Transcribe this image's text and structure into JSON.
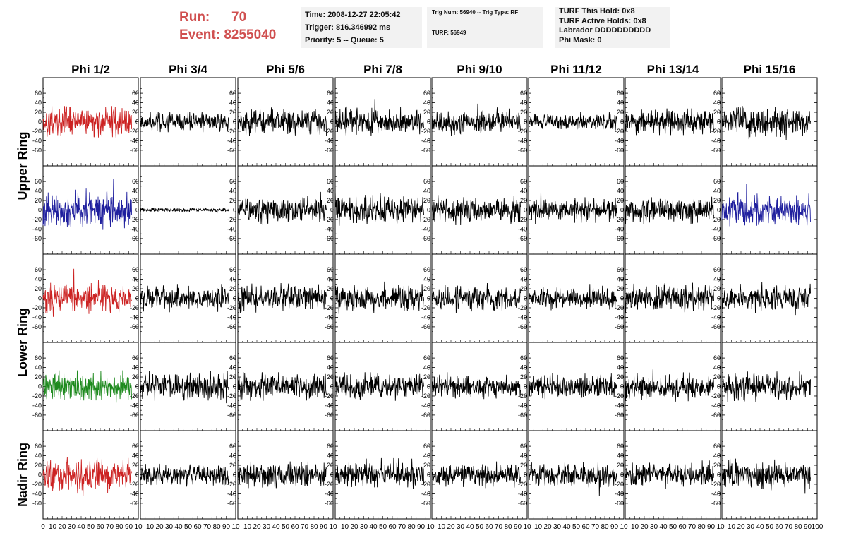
{
  "header": {
    "run_label": "Run:",
    "run_value": "70",
    "event_label": "Event:",
    "event_value": "8255040",
    "time_line": "Time: 2008-12-27 22:05:42",
    "trigger_line": "Trigger: 816.346992 ms",
    "priority_line": "Priority: 5 -- Queue: 5",
    "trig_num_line": "Trig Num: 56940 -- Trig Type: RF",
    "turf_line": "TURF: 56949",
    "turf_this_hold": "TURF This Hold: 0x8",
    "turf_active_holds": "TURF Active Holds: 0x8",
    "labrador": "Labrador DDDDDDDDDD",
    "phi_mask": "Phi Mask: 0"
  },
  "chart_data": {
    "type": "line",
    "columns": [
      "Phi 1/2",
      "Phi 3/4",
      "Phi 5/6",
      "Phi 7/8",
      "Phi 9/10",
      "Phi 11/12",
      "Phi 13/14",
      "Phi 15/16"
    ],
    "rows": [
      "Upper Ring",
      "Lower Ring",
      "Nadir Ring"
    ],
    "row_spans": [
      2,
      2,
      1
    ],
    "xlim": [
      0,
      100
    ],
    "ylim": [
      -75,
      75
    ],
    "y_ticks": [
      -60,
      -40,
      -20,
      0,
      20,
      40,
      60
    ],
    "x_ticks": [
      0,
      10,
      20,
      30,
      40,
      50,
      60,
      70,
      80,
      90,
      100
    ],
    "x_tick_labels_last": "100",
    "x_tick_labels_other": "10",
    "samples_per_trace": 260,
    "trace_end": 93,
    "colors": {
      "red": "#cc2222",
      "blue": "#1f1f9e",
      "green": "#1e8a1e",
      "black": "#000000"
    },
    "panels": [
      {
        "row": 0,
        "col": 0,
        "color": "red",
        "amplitude": 15,
        "peak": 33
      },
      {
        "row": 0,
        "col": 1,
        "color": "black",
        "amplitude": 9,
        "peak": 22
      },
      {
        "row": 0,
        "col": 2,
        "color": "black",
        "amplitude": 12,
        "peak": 30
      },
      {
        "row": 0,
        "col": 3,
        "color": "black",
        "amplitude": 12,
        "peak": 48
      },
      {
        "row": 0,
        "col": 4,
        "color": "black",
        "amplitude": 11,
        "peak": 38
      },
      {
        "row": 0,
        "col": 5,
        "color": "black",
        "amplitude": 8,
        "peak": 20
      },
      {
        "row": 0,
        "col": 6,
        "color": "black",
        "amplitude": 12,
        "peak": 28
      },
      {
        "row": 0,
        "col": 7,
        "color": "black",
        "amplitude": 14,
        "peak": 38
      },
      {
        "row": 1,
        "col": 0,
        "color": "blue",
        "amplitude": 17,
        "peak": 65
      },
      {
        "row": 1,
        "col": 1,
        "color": "black",
        "amplitude": 2,
        "peak": 7
      },
      {
        "row": 1,
        "col": 2,
        "color": "black",
        "amplitude": 13,
        "peak": 38
      },
      {
        "row": 1,
        "col": 3,
        "color": "black",
        "amplitude": 13,
        "peak": 40
      },
      {
        "row": 1,
        "col": 4,
        "color": "black",
        "amplitude": 12,
        "peak": 32
      },
      {
        "row": 1,
        "col": 5,
        "color": "black",
        "amplitude": 12,
        "peak": 42
      },
      {
        "row": 1,
        "col": 6,
        "color": "black",
        "amplitude": 12,
        "peak": 30
      },
      {
        "row": 1,
        "col": 7,
        "color": "blue",
        "amplitude": 16,
        "peak": 55
      },
      {
        "row": 2,
        "col": 0,
        "color": "red",
        "amplitude": 15,
        "peak": 62
      },
      {
        "row": 2,
        "col": 1,
        "color": "black",
        "amplitude": 13,
        "peak": 30
      },
      {
        "row": 2,
        "col": 2,
        "color": "black",
        "amplitude": 13,
        "peak": 32
      },
      {
        "row": 2,
        "col": 3,
        "color": "black",
        "amplitude": 13,
        "peak": 35
      },
      {
        "row": 2,
        "col": 4,
        "color": "black",
        "amplitude": 12,
        "peak": 32
      },
      {
        "row": 2,
        "col": 5,
        "color": "black",
        "amplitude": 11,
        "peak": 30
      },
      {
        "row": 2,
        "col": 6,
        "color": "black",
        "amplitude": 13,
        "peak": 32
      },
      {
        "row": 2,
        "col": 7,
        "color": "black",
        "amplitude": 13,
        "peak": 35
      },
      {
        "row": 3,
        "col": 0,
        "color": "green",
        "amplitude": 14,
        "peak": 34
      },
      {
        "row": 3,
        "col": 1,
        "color": "black",
        "amplitude": 13,
        "peak": 35
      },
      {
        "row": 3,
        "col": 2,
        "color": "black",
        "amplitude": 13,
        "peak": 30
      },
      {
        "row": 3,
        "col": 3,
        "color": "black",
        "amplitude": 12,
        "peak": 30
      },
      {
        "row": 3,
        "col": 4,
        "color": "black",
        "amplitude": 11,
        "peak": 30
      },
      {
        "row": 3,
        "col": 5,
        "color": "black",
        "amplitude": 11,
        "peak": 28
      },
      {
        "row": 3,
        "col": 6,
        "color": "black",
        "amplitude": 12,
        "peak": 36
      },
      {
        "row": 3,
        "col": 7,
        "color": "black",
        "amplitude": 13,
        "peak": 32
      },
      {
        "row": 4,
        "col": 0,
        "color": "red",
        "amplitude": 15,
        "peak": 45
      },
      {
        "row": 4,
        "col": 1,
        "color": "black",
        "amplitude": 10,
        "peak": 25
      },
      {
        "row": 4,
        "col": 2,
        "color": "black",
        "amplitude": 12,
        "peak": 28
      },
      {
        "row": 4,
        "col": 3,
        "color": "black",
        "amplitude": 13,
        "peak": 35
      },
      {
        "row": 4,
        "col": 4,
        "color": "black",
        "amplitude": 11,
        "peak": 28
      },
      {
        "row": 4,
        "col": 5,
        "color": "black",
        "amplitude": 12,
        "peak": 45
      },
      {
        "row": 4,
        "col": 6,
        "color": "black",
        "amplitude": 12,
        "peak": 30
      },
      {
        "row": 4,
        "col": 7,
        "color": "black",
        "amplitude": 13,
        "peak": 40
      }
    ]
  }
}
